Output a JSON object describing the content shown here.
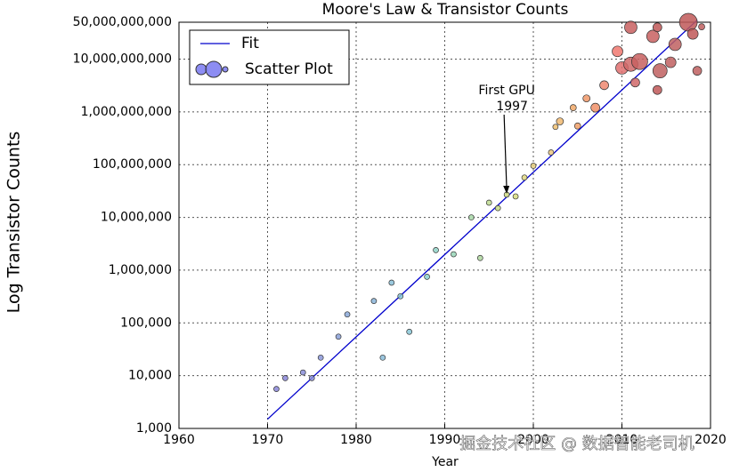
{
  "chart_data": {
    "type": "scatter",
    "title": "Moore's Law & Transistor Counts",
    "x_label": "Year",
    "y_label": "Log Transistor Counts",
    "log_y": true,
    "grid": true,
    "legend_position": "upper left",
    "xlim": [
      1960,
      2020
    ],
    "xticks": [
      1960,
      1970,
      1980,
      1990,
      2000,
      2010,
      2020
    ],
    "ylim": [
      1000,
      50000000000
    ],
    "yticks": [
      {
        "value": 1000,
        "label": "1,000"
      },
      {
        "value": 10000,
        "label": "10,000"
      },
      {
        "value": 100000,
        "label": "100,000"
      },
      {
        "value": 1000000,
        "label": "1,000,000"
      },
      {
        "value": 10000000,
        "label": "10,000,000"
      },
      {
        "value": 100000000,
        "label": "100,000,000"
      },
      {
        "value": 1000000000,
        "label": "1,000,000,000"
      },
      {
        "value": 10000000000,
        "label": "10,000,000,000"
      },
      {
        "value": 50000000000,
        "label": "50,000,000,000"
      }
    ],
    "series": [
      {
        "name": "Fit",
        "kind": "line",
        "color": "#0000cc",
        "x": [
          1970,
          2018.5
        ],
        "values": [
          1500,
          55000000000
        ]
      },
      {
        "name": "Scatter Plot",
        "kind": "scatter",
        "color": "#7070f0",
        "x": [
          1971,
          1972,
          1974,
          1975,
          1976,
          1978,
          1979,
          1982,
          1983,
          1984,
          1985,
          1986,
          1988,
          1989,
          1991,
          1993,
          1994,
          1995,
          1996,
          1997,
          1998,
          1999,
          2000,
          2002,
          2002.5,
          2003,
          2004.5,
          2005,
          2006,
          2007,
          2008,
          2009.5,
          2010,
          2011,
          2011,
          2011.5,
          2012,
          2013.5,
          2014,
          2014,
          2014.3,
          2015.5,
          2016,
          2017.5,
          2018,
          2018.5,
          2019
        ],
        "values": [
          5600,
          9000,
          11500,
          9000,
          22000,
          55000,
          145000,
          260000,
          22000,
          580000,
          320000,
          68000,
          750000,
          2400000,
          2000000,
          10000000,
          1700000,
          19000000,
          15000000,
          27000000,
          25000000,
          57000000,
          95000000,
          170000000,
          520000000,
          660000000,
          1200000000,
          540000000,
          1800000000,
          1200000000,
          3200000000,
          14000000000,
          6800000000,
          40000000000,
          8000000000,
          3600000000,
          9000000000,
          27000000000,
          40000000000,
          2600000000,
          6000000000,
          8700000000,
          19000000000,
          50000000000,
          30000000000,
          6000000000,
          41000000000
        ],
        "sizes": [
          3,
          3,
          3,
          3,
          3,
          3,
          3,
          3,
          3,
          3,
          3,
          3,
          3,
          3,
          3,
          3,
          3,
          3,
          3,
          3,
          3,
          3,
          3,
          3,
          3,
          4,
          3.5,
          3.5,
          4,
          5,
          5,
          6,
          7,
          7,
          8,
          5,
          9,
          7,
          5,
          5,
          8,
          6,
          7,
          10,
          6,
          5,
          3.5
        ],
        "colors": [
          "#8a86d8",
          "#8a86d8",
          "#8a8ed8",
          "#8a8ed8",
          "#8a96d8",
          "#8aa0d8",
          "#8aa8d8",
          "#8ab4d8",
          "#8abcd8",
          "#8ac0d8",
          "#8ac8d8",
          "#8ac8d8",
          "#8ad0d0",
          "#90d4c8",
          "#98d6b8",
          "#a8d8a8",
          "#b0d8a0",
          "#c0dc90",
          "#c8dc88",
          "#d0dc80",
          "#d8dc80",
          "#e0d880",
          "#e8d080",
          "#ecc880",
          "#f0c070",
          "#f0b870",
          "#f0a868",
          "#f0a068",
          "#f09868",
          "#f09068",
          "#f08870",
          "#f07870",
          "#e07070",
          "#c86060",
          "#d06868",
          "#d06868",
          "#c86060",
          "#c86060",
          "#c05858",
          "#c05858",
          "#c06060",
          "#c06060",
          "#c06060",
          "#c05858",
          "#c05858",
          "#c06060",
          "#c06060"
        ]
      }
    ],
    "annotations": [
      {
        "text": "First GPU",
        "text2": "1997",
        "x": 1997,
        "y": 27000000
      }
    ],
    "watermark": "掘金技术社区 @ 数据智能老司机"
  }
}
